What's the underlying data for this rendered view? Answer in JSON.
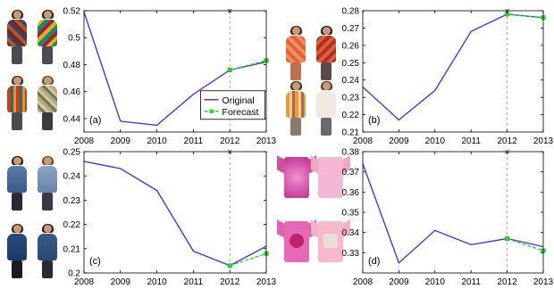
{
  "chart_data": [
    {
      "panel": "(a)",
      "type": "line",
      "x": [
        2008,
        2009,
        2010,
        2011,
        2012,
        2013
      ],
      "xticks": [
        "2008",
        "2009",
        "2010",
        "2011",
        "2012",
        "2013"
      ],
      "yticks": [
        "0.44",
        "0.46",
        "0.48",
        "0.5",
        "0.52"
      ],
      "ylim": [
        0.43,
        0.52
      ],
      "series": [
        {
          "name": "Original",
          "color": "#5a2cf0",
          "x": [
            2008,
            2009,
            2010,
            2011,
            2012,
            2013
          ],
          "values": [
            0.519,
            0.438,
            0.435,
            0.458,
            0.476,
            0.482
          ]
        },
        {
          "name": "Forecast",
          "color": "#22dd22",
          "x": [
            2012,
            2013
          ],
          "values": [
            0.476,
            0.483
          ]
        }
      ],
      "legend": {
        "position": "bottom-right",
        "entries": [
          "Original",
          "Forecast"
        ]
      },
      "forecast_start": 2012,
      "garments": "printed-blouses"
    },
    {
      "panel": "(b)",
      "type": "line",
      "x": [
        2008,
        2009,
        2010,
        2011,
        2012,
        2013
      ],
      "xticks": [
        "2008",
        "2009",
        "2010",
        "2011",
        "2012",
        "2013"
      ],
      "yticks": [
        "0.21",
        "0.22",
        "0.23",
        "0.24",
        "0.25",
        "0.26",
        "0.27",
        "0.28"
      ],
      "ylim": [
        0.21,
        0.28
      ],
      "series": [
        {
          "name": "Original",
          "color": "#5a2cf0",
          "x": [
            2008,
            2009,
            2010,
            2011,
            2012,
            2013
          ],
          "values": [
            0.236,
            0.217,
            0.234,
            0.268,
            0.278,
            0.276
          ]
        },
        {
          "name": "Forecast",
          "color": "#22dd22",
          "x": [
            2012,
            2013
          ],
          "values": [
            0.278,
            0.276
          ]
        }
      ],
      "forecast_start": 2012,
      "garments": "patterned-tunics"
    },
    {
      "panel": "(c)",
      "type": "line",
      "x": [
        2008,
        2009,
        2010,
        2011,
        2012,
        2013
      ],
      "xticks": [
        "2008",
        "2009",
        "2010",
        "2011",
        "2012",
        "2013"
      ],
      "yticks": [
        "0.2",
        "0.21",
        "0.22",
        "0.23",
        "0.24",
        "0.25"
      ],
      "ylim": [
        0.2,
        0.25
      ],
      "series": [
        {
          "name": "Original",
          "color": "#5a2cf0",
          "x": [
            2008,
            2009,
            2010,
            2011,
            2012,
            2013
          ],
          "values": [
            0.246,
            0.243,
            0.234,
            0.209,
            0.203,
            0.211
          ]
        },
        {
          "name": "Forecast",
          "color": "#22dd22",
          "x": [
            2012,
            2013
          ],
          "values": [
            0.203,
            0.208
          ]
        }
      ],
      "forecast_start": 2012,
      "garments": "denim-shirts"
    },
    {
      "panel": "(d)",
      "type": "line",
      "x": [
        2008,
        2009,
        2010,
        2011,
        2012,
        2013
      ],
      "xticks": [
        "2008",
        "2009",
        "2010",
        "2011",
        "2012",
        "2013"
      ],
      "yticks": [
        "0.33",
        "0.34",
        "0.35",
        "0.36",
        "0.37",
        "0.38"
      ],
      "ylim": [
        0.32,
        0.38
      ],
      "series": [
        {
          "name": "Original",
          "color": "#5a2cf0",
          "x": [
            2008,
            2009,
            2010,
            2011,
            2012,
            2013
          ],
          "values": [
            0.374,
            0.325,
            0.341,
            0.334,
            0.337,
            0.333
          ]
        },
        {
          "name": "Forecast",
          "color": "#22dd22",
          "x": [
            2012,
            2013
          ],
          "values": [
            0.337,
            0.331
          ]
        }
      ],
      "forecast_start": 2012,
      "garments": "pink-tshirts"
    }
  ],
  "colors": {
    "original": "#5a2cf0",
    "forecast": "#22dd22",
    "axis": "#000000",
    "divider": "#999999"
  }
}
